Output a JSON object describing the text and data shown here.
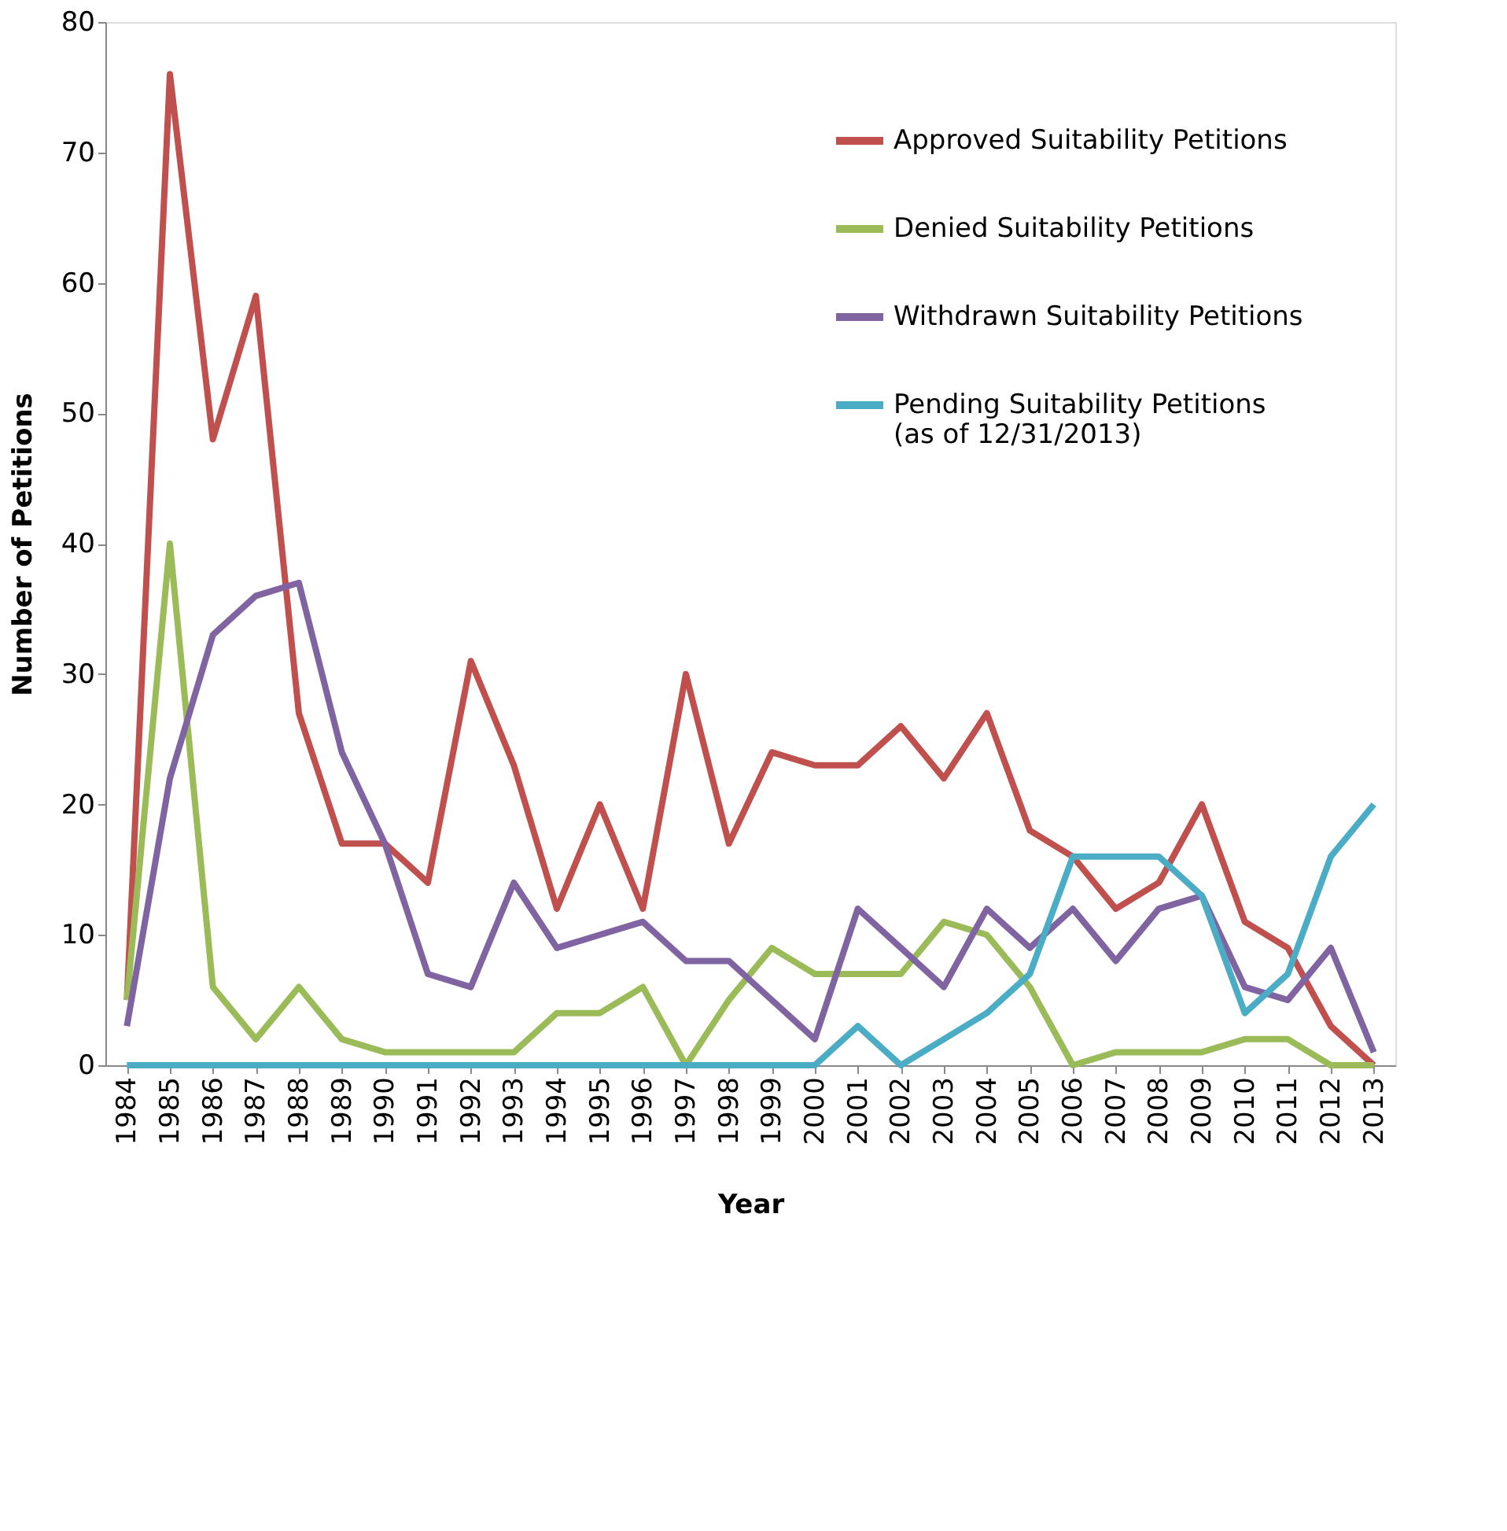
{
  "chart_data": {
    "type": "line",
    "xlabel": "Year",
    "ylabel": "Number of Petitions",
    "categories": [
      "1984",
      "1985",
      "1986",
      "1987",
      "1988",
      "1989",
      "1990",
      "1991",
      "1992",
      "1993",
      "1994",
      "1995",
      "1996",
      "1997",
      "1998",
      "1999",
      "2000",
      "2001",
      "2002",
      "2003",
      "2004",
      "2005",
      "2006",
      "2007",
      "2008",
      "2009",
      "2010",
      "2011",
      "2012",
      "2013"
    ],
    "series": [
      {
        "name": "Approved Suitability Petitions",
        "color": "#c0504d",
        "values": [
          5,
          76,
          48,
          59,
          27,
          17,
          17,
          14,
          31,
          23,
          12,
          20,
          12,
          30,
          17,
          24,
          23,
          23,
          26,
          22,
          27,
          18,
          16,
          12,
          14,
          20,
          11,
          9,
          3,
          0
        ]
      },
      {
        "name": "Denied Suitability Petitions",
        "color": "#9bbb59",
        "values": [
          5,
          40,
          6,
          2,
          6,
          2,
          1,
          1,
          1,
          1,
          4,
          4,
          6,
          0,
          5,
          9,
          7,
          7,
          7,
          11,
          10,
          6,
          0,
          1,
          1,
          1,
          2,
          2,
          0,
          0
        ]
      },
      {
        "name": "Withdrawn Suitability Petitions",
        "color": "#8064a2",
        "values": [
          3,
          22,
          33,
          36,
          37,
          24,
          17,
          7,
          6,
          14,
          9,
          10,
          11,
          8,
          8,
          5,
          2,
          12,
          9,
          6,
          12,
          9,
          12,
          8,
          12,
          13,
          6,
          5,
          9,
          1
        ]
      },
      {
        "name": "Pending Suitability Petitions\n(as of 12/31/2013)",
        "color": "#4bacc6",
        "values": [
          0,
          0,
          0,
          0,
          0,
          0,
          0,
          0,
          0,
          0,
          0,
          0,
          0,
          0,
          0,
          0,
          0,
          3,
          0,
          2,
          4,
          7,
          16,
          16,
          16,
          13,
          4,
          7,
          16,
          20
        ]
      }
    ],
    "ylim": [
      0,
      80
    ],
    "yticks": [
      0,
      10,
      20,
      30,
      40,
      50,
      60,
      70,
      80
    ],
    "grid": false,
    "legend": "top right",
    "marker": "none",
    "line_style": "solid"
  }
}
